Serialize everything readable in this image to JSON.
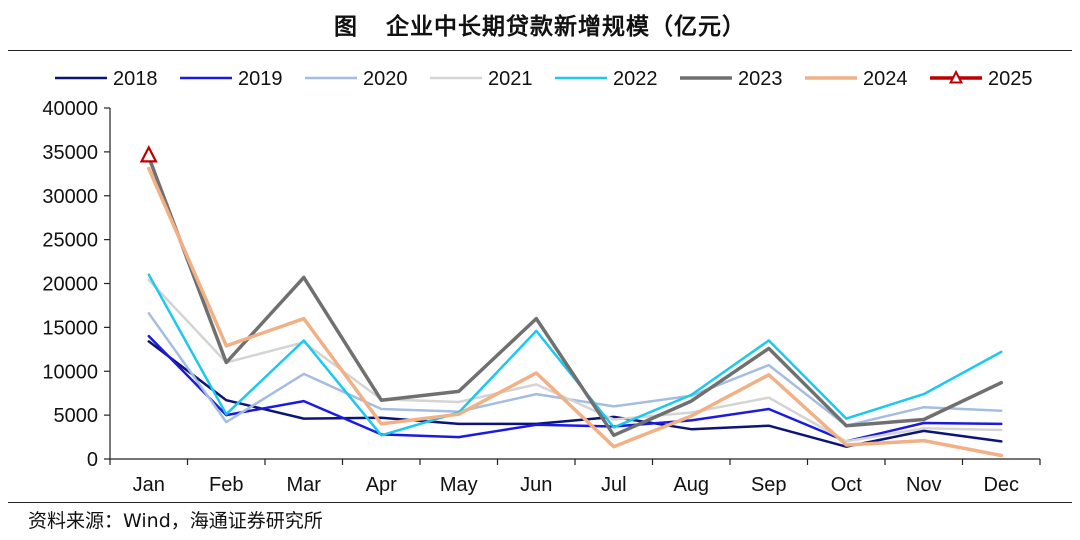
{
  "header": {
    "lead": "图",
    "title": "企业中长期贷款新增规模（亿元）"
  },
  "footer": {
    "source": "资料来源：Wind，海通证券研究所"
  },
  "chart_data": {
    "type": "line",
    "title": "企业中长期贷款新增规模（亿元）",
    "xlabel": "",
    "ylabel": "",
    "ylim": [
      0,
      40000
    ],
    "yticks": [
      0,
      5000,
      10000,
      15000,
      20000,
      25000,
      30000,
      35000,
      40000
    ],
    "categories": [
      "Jan",
      "Feb",
      "Mar",
      "Apr",
      "May",
      "Jun",
      "Jul",
      "Aug",
      "Sep",
      "Oct",
      "Nov",
      "Dec"
    ],
    "grid": false,
    "legend_position": "top",
    "series": [
      {
        "name": "2018",
        "color": "#0d1478",
        "width": 2.5,
        "values": [
          13400,
          6700,
          4600,
          4700,
          4000,
          4000,
          4800,
          3400,
          3800,
          1400,
          3200,
          2000
        ]
      },
      {
        "name": "2019",
        "color": "#1a1ae0",
        "width": 2.5,
        "values": [
          14000,
          5000,
          6600,
          2800,
          2500,
          3900,
          3700,
          4400,
          5700,
          2000,
          4100,
          4000
        ]
      },
      {
        "name": "2020",
        "color": "#a4bde0",
        "width": 2.5,
        "values": [
          16600,
          4200,
          9700,
          5700,
          5400,
          7400,
          6000,
          7200,
          10700,
          3800,
          5900,
          5500
        ]
      },
      {
        "name": "2021",
        "color": "#d4d4d4",
        "width": 2.5,
        "values": [
          20400,
          11000,
          13300,
          6800,
          6500,
          8500,
          4500,
          5300,
          7000,
          2000,
          3500,
          3300
        ]
      },
      {
        "name": "2022",
        "color": "#1ac8f0",
        "width": 2.5,
        "values": [
          21000,
          5100,
          13500,
          2700,
          5300,
          14600,
          3600,
          7300,
          13500,
          4600,
          7400,
          12200
        ]
      },
      {
        "name": "2023",
        "color": "#707070",
        "width": 3.5,
        "values": [
          34400,
          11000,
          20700,
          6700,
          7700,
          16000,
          2700,
          6600,
          12600,
          3800,
          4500,
          8700
        ]
      },
      {
        "name": "2024",
        "color": "#f2b085",
        "width": 3.5,
        "values": [
          33100,
          12900,
          16000,
          4000,
          5100,
          9800,
          1400,
          4900,
          9600,
          1600,
          2100,
          400
        ]
      },
      {
        "name": "2025",
        "color": "#c00000",
        "width": 3.5,
        "marker": "triangle",
        "values": [
          34600,
          null,
          null,
          null,
          null,
          null,
          null,
          null,
          null,
          null,
          null,
          null
        ]
      }
    ]
  }
}
